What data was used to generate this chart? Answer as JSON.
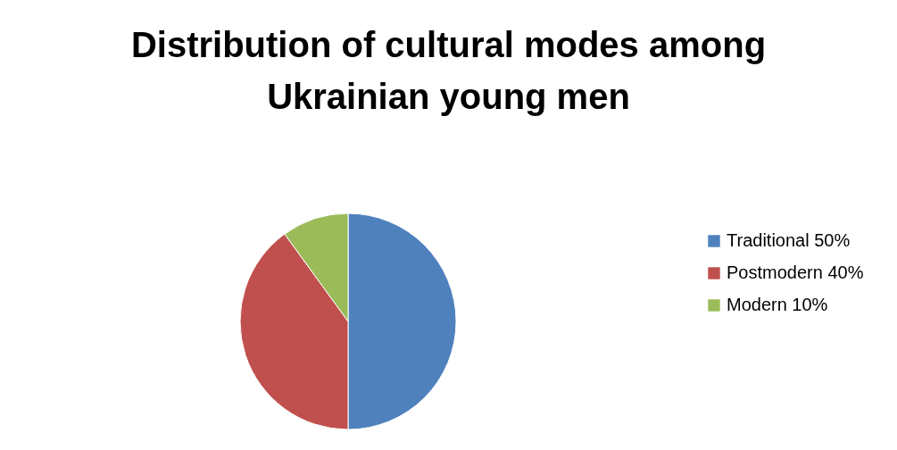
{
  "chart_data": {
    "type": "pie",
    "title": "Distribution of cultural modes among Ukrainian young men",
    "categories": [
      "Traditional 50%",
      "Postmodern 40%",
      "Modern 10%"
    ],
    "values": [
      50,
      40,
      10
    ],
    "colors": [
      "#4f81bd",
      "#c0504d",
      "#9bbb59"
    ],
    "legend": "right"
  }
}
